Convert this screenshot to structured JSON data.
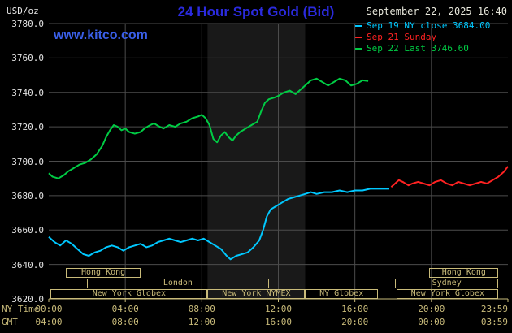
{
  "header": {
    "unit_label": "USD/oz",
    "title": "24 Hour Spot Gold (Bid)",
    "datetime": "September 22, 2025 16:40",
    "watermark_link": "www.kitco.com",
    "legend": [
      {
        "label": "Sep 19 NY close 3684.00",
        "color": "#00c8ff"
      },
      {
        "label": "Sep 21 Sunday",
        "color": "#ff2222"
      },
      {
        "label": "Sep 22 Last 3746.60",
        "color": "#00cc44"
      }
    ]
  },
  "axis_rows": {
    "ny_time": "NY Time",
    "gmt": "GMT"
  },
  "colors": {
    "background": "#000000",
    "grid": "#4c4c4c",
    "band": "#191919",
    "axis_tan": "#c9bb7a",
    "title_blue": "#2b2bdf",
    "link_blue": "#3a5fe8",
    "date_text": "#e8e8dc",
    "y_label_text": "#e2e2e2"
  },
  "chart_data": {
    "type": "line",
    "title": "24 Hour Spot Gold (Bid)",
    "ylabel": "USD/oz",
    "ylim": [
      3620,
      3780
    ],
    "xlim_hours": [
      0,
      24
    ],
    "grid": true,
    "legend_position": "top-right",
    "y_ticks": [
      "3780.0",
      "3760.0",
      "3740.0",
      "3720.0",
      "3700.0",
      "3680.0",
      "3660.0",
      "3640.0",
      "3620.0"
    ],
    "x_tick_hours": [
      0,
      4,
      8,
      12,
      16,
      20,
      24
    ],
    "x_ticks_ny": [
      "00:00",
      "04:00",
      "08:00",
      "12:00",
      "16:00",
      "20:00",
      "23:59"
    ],
    "x_ticks_gmt": [
      "04:00",
      "08:00",
      "12:00",
      "16:00",
      "20:00",
      "00:00",
      "03:59"
    ],
    "nymex_band_hours": [
      8.3,
      13.4
    ],
    "series": [
      {
        "name": "Sep 22 Last 3746.60",
        "color": "#00cc44",
        "points": [
          [
            0,
            3693
          ],
          [
            0.2,
            3691
          ],
          [
            0.5,
            3690
          ],
          [
            0.8,
            3692
          ],
          [
            1,
            3694
          ],
          [
            1.3,
            3696
          ],
          [
            1.6,
            3698
          ],
          [
            1.9,
            3699
          ],
          [
            2.2,
            3701
          ],
          [
            2.5,
            3704
          ],
          [
            2.8,
            3709
          ],
          [
            3,
            3714
          ],
          [
            3.2,
            3718
          ],
          [
            3.4,
            3721
          ],
          [
            3.6,
            3720
          ],
          [
            3.8,
            3718
          ],
          [
            4,
            3719
          ],
          [
            4.2,
            3717
          ],
          [
            4.5,
            3716
          ],
          [
            4.8,
            3717
          ],
          [
            5,
            3719
          ],
          [
            5.3,
            3721
          ],
          [
            5.5,
            3722
          ],
          [
            5.8,
            3720
          ],
          [
            6,
            3719
          ],
          [
            6.3,
            3721
          ],
          [
            6.6,
            3720
          ],
          [
            6.9,
            3722
          ],
          [
            7.2,
            3723
          ],
          [
            7.5,
            3725
          ],
          [
            7.8,
            3726
          ],
          [
            8,
            3727
          ],
          [
            8.2,
            3725
          ],
          [
            8.4,
            3721
          ],
          [
            8.6,
            3713
          ],
          [
            8.8,
            3711
          ],
          [
            9,
            3715
          ],
          [
            9.2,
            3717
          ],
          [
            9.4,
            3714
          ],
          [
            9.6,
            3712
          ],
          [
            9.8,
            3715
          ],
          [
            10,
            3717
          ],
          [
            10.3,
            3719
          ],
          [
            10.6,
            3721
          ],
          [
            10.9,
            3723
          ],
          [
            11.1,
            3729
          ],
          [
            11.3,
            3734
          ],
          [
            11.5,
            3736
          ],
          [
            11.8,
            3737
          ],
          [
            12,
            3738
          ],
          [
            12.3,
            3740
          ],
          [
            12.6,
            3741
          ],
          [
            12.9,
            3739
          ],
          [
            13.1,
            3741
          ],
          [
            13.4,
            3744
          ],
          [
            13.7,
            3747
          ],
          [
            14,
            3748
          ],
          [
            14.3,
            3746
          ],
          [
            14.6,
            3744
          ],
          [
            14.9,
            3746
          ],
          [
            15.2,
            3748
          ],
          [
            15.5,
            3747
          ],
          [
            15.8,
            3744
          ],
          [
            16.1,
            3745
          ],
          [
            16.4,
            3747
          ],
          [
            16.7,
            3746.6
          ]
        ]
      },
      {
        "name": "Sep 19 NY close 3684.00",
        "color": "#00c8ff",
        "points": [
          [
            0,
            3656
          ],
          [
            0.3,
            3653
          ],
          [
            0.6,
            3651
          ],
          [
            0.9,
            3654
          ],
          [
            1.2,
            3652
          ],
          [
            1.5,
            3649
          ],
          [
            1.8,
            3646
          ],
          [
            2.1,
            3645
          ],
          [
            2.4,
            3647
          ],
          [
            2.7,
            3648
          ],
          [
            3,
            3650
          ],
          [
            3.3,
            3651
          ],
          [
            3.6,
            3650
          ],
          [
            3.9,
            3648
          ],
          [
            4.2,
            3650
          ],
          [
            4.5,
            3651
          ],
          [
            4.8,
            3652
          ],
          [
            5.1,
            3650
          ],
          [
            5.4,
            3651
          ],
          [
            5.7,
            3653
          ],
          [
            6,
            3654
          ],
          [
            6.3,
            3655
          ],
          [
            6.6,
            3654
          ],
          [
            6.9,
            3653
          ],
          [
            7.2,
            3654
          ],
          [
            7.5,
            3655
          ],
          [
            7.8,
            3654
          ],
          [
            8.1,
            3655
          ],
          [
            8.4,
            3653
          ],
          [
            8.7,
            3651
          ],
          [
            9,
            3649
          ],
          [
            9.3,
            3645
          ],
          [
            9.5,
            3643
          ],
          [
            9.8,
            3645
          ],
          [
            10.1,
            3646
          ],
          [
            10.4,
            3647
          ],
          [
            10.7,
            3650
          ],
          [
            11,
            3654
          ],
          [
            11.2,
            3660
          ],
          [
            11.4,
            3668
          ],
          [
            11.6,
            3672
          ],
          [
            11.9,
            3674
          ],
          [
            12.2,
            3676
          ],
          [
            12.5,
            3678
          ],
          [
            12.8,
            3679
          ],
          [
            13.1,
            3680
          ],
          [
            13.4,
            3681
          ],
          [
            13.7,
            3682
          ],
          [
            14,
            3681
          ],
          [
            14.4,
            3682
          ],
          [
            14.8,
            3682
          ],
          [
            15.2,
            3683
          ],
          [
            15.6,
            3682
          ],
          [
            16,
            3683
          ],
          [
            16.4,
            3683
          ],
          [
            16.8,
            3684
          ],
          [
            17.2,
            3684
          ],
          [
            17.8,
            3684
          ]
        ]
      },
      {
        "name": "Sep 21 Sunday",
        "color": "#ff2222",
        "points": [
          [
            17.9,
            3685
          ],
          [
            18.1,
            3687
          ],
          [
            18.3,
            3689
          ],
          [
            18.5,
            3688
          ],
          [
            18.8,
            3686
          ],
          [
            19,
            3687
          ],
          [
            19.3,
            3688
          ],
          [
            19.6,
            3687
          ],
          [
            19.9,
            3686
          ],
          [
            20.2,
            3688
          ],
          [
            20.5,
            3689
          ],
          [
            20.8,
            3687
          ],
          [
            21.1,
            3686
          ],
          [
            21.4,
            3688
          ],
          [
            21.7,
            3687
          ],
          [
            22,
            3686
          ],
          [
            22.3,
            3687
          ],
          [
            22.6,
            3688
          ],
          [
            22.9,
            3687
          ],
          [
            23.2,
            3689
          ],
          [
            23.5,
            3691
          ],
          [
            23.8,
            3694
          ],
          [
            24,
            3697
          ]
        ]
      }
    ],
    "sessions": [
      {
        "name": "Hong Kong",
        "row": 0,
        "start": 0.9,
        "end": 4.8
      },
      {
        "name": "Hong Kong",
        "row": 0,
        "start": 19.9,
        "end": 23.5
      },
      {
        "name": "London",
        "row": 1,
        "start": 2.0,
        "end": 11.5
      },
      {
        "name": "Sydney",
        "row": 1,
        "start": 18.1,
        "end": 23.5
      },
      {
        "name": "New York Globex",
        "row": 2,
        "start": 0.1,
        "end": 8.3
      },
      {
        "name": "New York NYMEX",
        "row": 2,
        "start": 8.3,
        "end": 13.4
      },
      {
        "name": "NY Globex",
        "row": 2,
        "start": 13.4,
        "end": 17.2
      },
      {
        "name": "New York Globex",
        "row": 2,
        "start": 18.2,
        "end": 23.5
      }
    ]
  }
}
